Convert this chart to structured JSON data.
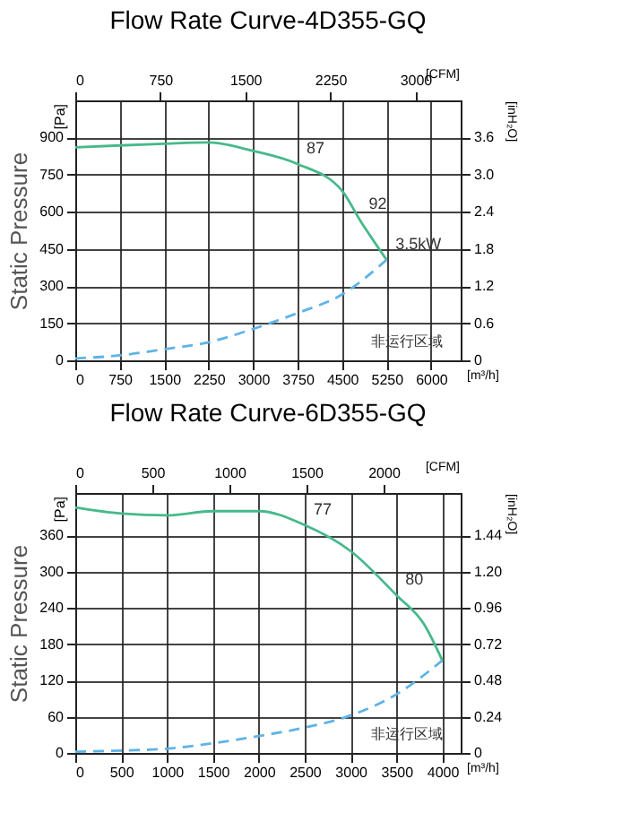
{
  "chart_data": [
    {
      "type": "line",
      "title": "Flow Rate Curve-4D355-GQ",
      "xlabel": "[m³/h]",
      "x2label": "[CFM]",
      "ylabel": "Static Pressure",
      "y2label": "[inH₂O]",
      "xlim": [
        0,
        6500
      ],
      "xticks": [
        0,
        750,
        1500,
        2250,
        3000,
        3750,
        4500,
        5250,
        6000
      ],
      "x2lim": [
        0,
        3400
      ],
      "x2ticks": [
        0,
        750,
        1500,
        2250,
        3000
      ],
      "ylim": [
        0,
        1050
      ],
      "yticks": [
        0,
        150,
        300,
        450,
        600,
        750,
        900
      ],
      "y2lim": [
        0,
        4.2
      ],
      "y2ticks": [
        0,
        0.6,
        1.2,
        1.8,
        2.4,
        {
          "value": 3.0,
          "label": "3.0"
        },
        3.6
      ],
      "grid": true,
      "marker": "none",
      "series": [
        {
          "color": "#46b98a",
          "line_style": "solid",
          "x": [
            0,
            750,
            1500,
            2250,
            3000,
            3750,
            4500,
            4800,
            5250
          ],
          "values": [
            860,
            868,
            875,
            880,
            846,
            793,
            685,
            567,
            406
          ]
        },
        {
          "color": "#5fb3e6",
          "line_style": "dashed",
          "x": [
            0,
            750,
            1500,
            2250,
            3000,
            3750,
            4500,
            5250
          ],
          "values": [
            8,
            20,
            45,
            73,
            127,
            191,
            266,
            406
          ]
        }
      ],
      "annotations": [
        "[Pa]",
        "非运行区域",
        {
          "text": "87",
          "x": 3750,
          "y": 793
        },
        {
          "text": "92",
          "x": 4800,
          "y": 567
        },
        {
          "text": "3.5kW",
          "x": 5250,
          "y": 406
        }
      ]
    },
    {
      "type": "line",
      "title": "Flow Rate Curve-6D355-GQ",
      "xlabel": "[m³/h]",
      "x2label": "[CFM]",
      "ylabel": "Static Pressure",
      "y2label": "[inH₂O]",
      "xlim": [
        0,
        4200
      ],
      "xticks": [
        0,
        500,
        1000,
        1500,
        2000,
        2500,
        3000,
        3500,
        4000
      ],
      "x2lim": [
        0,
        2500
      ],
      "x2ticks": [
        0,
        500,
        1000,
        1500,
        2000
      ],
      "ylim": [
        0,
        430
      ],
      "yticks": [
        0,
        60,
        120,
        180,
        240,
        300,
        360
      ],
      "y2lim": [
        0,
        1.72
      ],
      "y2ticks": [
        0,
        0.24,
        0.48,
        0.72,
        0.96,
        {
          "value": 1.2,
          "label": "1.20"
        },
        1.44
      ],
      "grid": true,
      "marker": "none",
      "series": [
        {
          "color": "#46b98a",
          "line_style": "solid",
          "x": [
            0,
            500,
            1000,
            1500,
            2000,
            2500,
            3000,
            3500,
            3800,
            4000
          ],
          "values": [
            406,
            396,
            393,
            400,
            400,
            377,
            334,
            261,
            213,
            153
          ]
        },
        {
          "color": "#5fb3e6",
          "line_style": "dashed",
          "x": [
            0,
            500,
            1000,
            1500,
            2000,
            2500,
            3000,
            3500,
            4000
          ],
          "values": [
            2,
            4,
            7,
            16,
            28,
            42,
            62,
            97,
            153
          ]
        }
      ],
      "annotations": [
        "[Pa]",
        "非运行区域",
        {
          "text": "77",
          "x": 2500,
          "y": 377
        },
        {
          "text": "80",
          "x": 3500,
          "y": 261
        }
      ]
    }
  ]
}
